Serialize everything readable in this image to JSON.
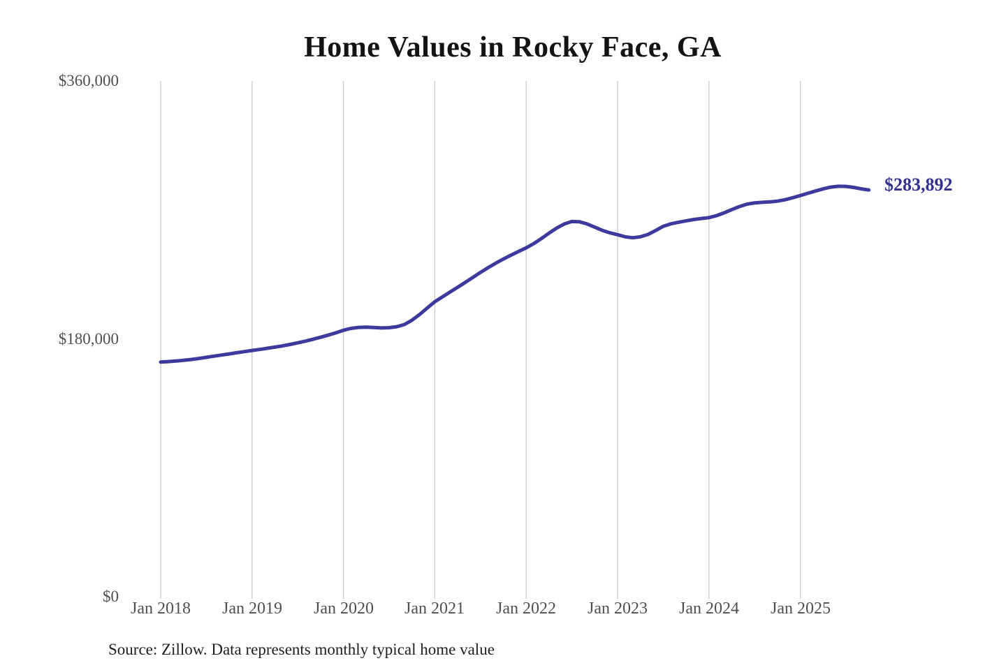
{
  "title": "Home Values in Rocky Face, GA",
  "source_note": "Source: Zillow. Data represents monthly typical home value",
  "colors": {
    "line": "#3c3a9d",
    "end_label": "#32308e",
    "grid": "#c9c9c9",
    "axis_text": "#4f4f4f",
    "title_text": "#131313",
    "source_text": "#1f1f1f",
    "background": "#ffffff"
  },
  "chart_data": {
    "type": "line",
    "title": "Home Values in Rocky Face, GA",
    "series_name": "Monthly typical home value",
    "frequency": "monthly",
    "unit": "USD",
    "ylim": [
      0,
      360000
    ],
    "grid": "vertical-only",
    "legend": false,
    "end_label": "$283,892",
    "end_value": 283892,
    "y_ticks": [
      {
        "label": "$360,000",
        "value": 360000
      },
      {
        "label": "$180,000",
        "value": 180000
      },
      {
        "label": "$0",
        "value": 0
      }
    ],
    "x_ticks": [
      {
        "label": "Jan 2018",
        "x": "2018-01"
      },
      {
        "label": "Jan 2019",
        "x": "2019-01"
      },
      {
        "label": "Jan 2020",
        "x": "2020-01"
      },
      {
        "label": "Jan 2021",
        "x": "2021-01"
      },
      {
        "label": "Jan 2022",
        "x": "2022-01"
      },
      {
        "label": "Jan 2023",
        "x": "2023-01"
      },
      {
        "label": "Jan 2024",
        "x": "2024-01"
      },
      {
        "label": "Jan 2025",
        "x": "2025-01"
      }
    ],
    "x": [
      "2018-01",
      "2018-02",
      "2018-03",
      "2018-04",
      "2018-05",
      "2018-06",
      "2018-07",
      "2018-08",
      "2018-09",
      "2018-10",
      "2018-11",
      "2018-12",
      "2019-01",
      "2019-02",
      "2019-03",
      "2019-04",
      "2019-05",
      "2019-06",
      "2019-07",
      "2019-08",
      "2019-09",
      "2019-10",
      "2019-11",
      "2019-12",
      "2020-01",
      "2020-02",
      "2020-03",
      "2020-04",
      "2020-05",
      "2020-06",
      "2020-07",
      "2020-08",
      "2020-09",
      "2020-10",
      "2020-11",
      "2020-12",
      "2021-01",
      "2021-02",
      "2021-03",
      "2021-04",
      "2021-05",
      "2021-06",
      "2021-07",
      "2021-08",
      "2021-09",
      "2021-10",
      "2021-11",
      "2021-12",
      "2022-01",
      "2022-02",
      "2022-03",
      "2022-04",
      "2022-05",
      "2022-06",
      "2022-07",
      "2022-08",
      "2022-09",
      "2022-10",
      "2022-11",
      "2022-12",
      "2023-01",
      "2023-02",
      "2023-03",
      "2023-04",
      "2023-05",
      "2023-06",
      "2023-07",
      "2023-08",
      "2023-09",
      "2023-10",
      "2023-11",
      "2023-12",
      "2024-01",
      "2024-02",
      "2024-03",
      "2024-04",
      "2024-05",
      "2024-06",
      "2024-07",
      "2024-08",
      "2024-09",
      "2024-10",
      "2024-11",
      "2024-12",
      "2025-01",
      "2025-02",
      "2025-03",
      "2025-04",
      "2025-05",
      "2025-06",
      "2025-07",
      "2025-08",
      "2025-09",
      "2025-10"
    ],
    "values": [
      163800,
      164100,
      164500,
      165000,
      165600,
      166300,
      167100,
      167900,
      168700,
      169500,
      170300,
      171100,
      171900,
      172600,
      173400,
      174200,
      175100,
      176100,
      177200,
      178400,
      179700,
      181100,
      182600,
      184200,
      186000,
      187300,
      188000,
      188200,
      187900,
      187600,
      187800,
      188500,
      190000,
      193000,
      197000,
      201500,
      205900,
      209300,
      212700,
      216000,
      219400,
      222900,
      226400,
      229700,
      232800,
      235700,
      238400,
      241000,
      243500,
      246500,
      250000,
      253800,
      257300,
      260200,
      261900,
      261700,
      260200,
      258000,
      255700,
      254000,
      252700,
      251200,
      250600,
      251200,
      252900,
      255600,
      258600,
      260300,
      261400,
      262400,
      263300,
      264000,
      264600,
      266000,
      268000,
      270200,
      272300,
      274000,
      274900,
      275300,
      275600,
      276100,
      277100,
      278500,
      280000,
      281600,
      283200,
      284700,
      285900,
      286500,
      286400,
      285700,
      284700,
      283892
    ]
  }
}
